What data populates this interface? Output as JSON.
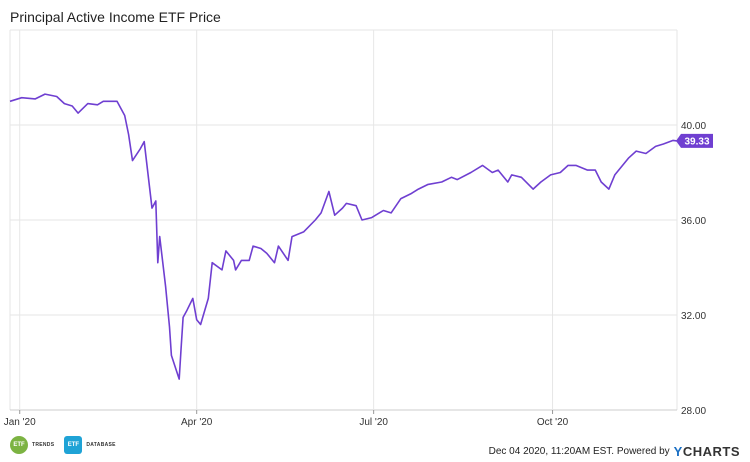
{
  "chart_data": {
    "type": "line",
    "title": "Principal Active Income ETF Price",
    "x_tick_labels": [
      "Jan '20",
      "Apr '20",
      "Jul '20",
      "Oct '20"
    ],
    "x_ticks": [
      "2020-01-01",
      "2020-04-01",
      "2020-07-01",
      "2020-10-01"
    ],
    "x_range": [
      "2019-12-27",
      "2020-12-04"
    ],
    "ylim": [
      28,
      44
    ],
    "y_ticks": [
      28,
      32,
      36,
      40
    ],
    "y_tick_labels": [
      "28.00",
      "32.00",
      "36.00",
      "40.00"
    ],
    "grid": true,
    "series": [
      {
        "color": "#6f3fd1",
        "last_value_label": "39.33",
        "points": [
          [
            "2019-12-27",
            41.0
          ],
          [
            "2020-01-02",
            41.15
          ],
          [
            "2020-01-09",
            41.1
          ],
          [
            "2020-01-14",
            41.3
          ],
          [
            "2020-01-20",
            41.2
          ],
          [
            "2020-01-24",
            40.9
          ],
          [
            "2020-01-28",
            40.8
          ],
          [
            "2020-01-31",
            40.5
          ],
          [
            "2020-02-05",
            40.9
          ],
          [
            "2020-02-10",
            40.85
          ],
          [
            "2020-02-13",
            41.0
          ],
          [
            "2020-02-20",
            41.0
          ],
          [
            "2020-02-24",
            40.4
          ],
          [
            "2020-02-26",
            39.6
          ],
          [
            "2020-02-28",
            38.5
          ],
          [
            "2020-03-03",
            39.0
          ],
          [
            "2020-03-05",
            39.3
          ],
          [
            "2020-03-09",
            36.5
          ],
          [
            "2020-03-11",
            36.8
          ],
          [
            "2020-03-12",
            34.2
          ],
          [
            "2020-03-13",
            35.3
          ],
          [
            "2020-03-16",
            33.2
          ],
          [
            "2020-03-18",
            31.5
          ],
          [
            "2020-03-19",
            30.3
          ],
          [
            "2020-03-23",
            29.3
          ],
          [
            "2020-03-24",
            30.6
          ],
          [
            "2020-03-25",
            31.9
          ],
          [
            "2020-03-27",
            32.2
          ],
          [
            "2020-03-30",
            32.7
          ],
          [
            "2020-04-01",
            31.8
          ],
          [
            "2020-04-03",
            31.6
          ],
          [
            "2020-04-07",
            32.7
          ],
          [
            "2020-04-09",
            34.2
          ],
          [
            "2020-04-14",
            33.9
          ],
          [
            "2020-04-16",
            34.7
          ],
          [
            "2020-04-20",
            34.3
          ],
          [
            "2020-04-21",
            33.9
          ],
          [
            "2020-04-24",
            34.3
          ],
          [
            "2020-04-28",
            34.3
          ],
          [
            "2020-04-30",
            34.9
          ],
          [
            "2020-05-04",
            34.8
          ],
          [
            "2020-05-07",
            34.6
          ],
          [
            "2020-05-11",
            34.2
          ],
          [
            "2020-05-13",
            34.9
          ],
          [
            "2020-05-18",
            34.3
          ],
          [
            "2020-05-20",
            35.3
          ],
          [
            "2020-05-26",
            35.5
          ],
          [
            "2020-06-01",
            36.0
          ],
          [
            "2020-06-04",
            36.3
          ],
          [
            "2020-06-08",
            37.2
          ],
          [
            "2020-06-11",
            36.2
          ],
          [
            "2020-06-15",
            36.5
          ],
          [
            "2020-06-17",
            36.7
          ],
          [
            "2020-06-22",
            36.6
          ],
          [
            "2020-06-25",
            36.0
          ],
          [
            "2020-06-30",
            36.1
          ],
          [
            "2020-07-06",
            36.4
          ],
          [
            "2020-07-10",
            36.3
          ],
          [
            "2020-07-15",
            36.9
          ],
          [
            "2020-07-20",
            37.1
          ],
          [
            "2020-07-24",
            37.3
          ],
          [
            "2020-07-29",
            37.5
          ],
          [
            "2020-08-05",
            37.6
          ],
          [
            "2020-08-10",
            37.8
          ],
          [
            "2020-08-13",
            37.7
          ],
          [
            "2020-08-20",
            38.0
          ],
          [
            "2020-08-26",
            38.3
          ],
          [
            "2020-08-31",
            38.0
          ],
          [
            "2020-09-03",
            38.1
          ],
          [
            "2020-09-08",
            37.6
          ],
          [
            "2020-09-10",
            37.9
          ],
          [
            "2020-09-15",
            37.8
          ],
          [
            "2020-09-21",
            37.3
          ],
          [
            "2020-09-25",
            37.6
          ],
          [
            "2020-09-30",
            37.9
          ],
          [
            "2020-10-05",
            38.0
          ],
          [
            "2020-10-09",
            38.3
          ],
          [
            "2020-10-13",
            38.3
          ],
          [
            "2020-10-19",
            38.1
          ],
          [
            "2020-10-23",
            38.1
          ],
          [
            "2020-10-26",
            37.6
          ],
          [
            "2020-10-30",
            37.3
          ],
          [
            "2020-11-02",
            37.9
          ],
          [
            "2020-11-09",
            38.6
          ],
          [
            "2020-11-13",
            38.9
          ],
          [
            "2020-11-18",
            38.8
          ],
          [
            "2020-11-23",
            39.1
          ],
          [
            "2020-11-27",
            39.2
          ],
          [
            "2020-12-02",
            39.35
          ],
          [
            "2020-12-04",
            39.33
          ]
        ]
      }
    ]
  },
  "footer": {
    "timestamp_text": "Dec 04 2020, 11:20AM EST. Powered by",
    "brand_y": "Y",
    "brand_rest": "CHARTS",
    "logo1_badge": "ETF",
    "logo1_text": "TRENDS",
    "logo2_badge": "ETF",
    "logo2_text": "DATABASE"
  },
  "colors": {
    "line": "#6f3fd1",
    "grid": "#e6e6e6",
    "axis_text": "#333333",
    "badge_bg": "#6f3fd1",
    "badge_text": "#ffffff"
  }
}
